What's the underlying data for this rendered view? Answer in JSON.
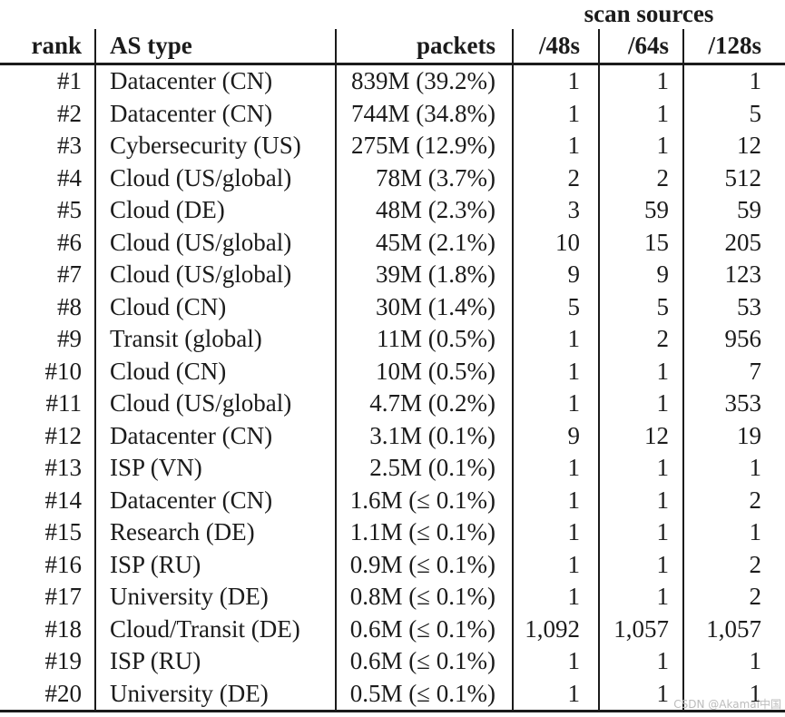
{
  "colors": {
    "text": "#1b1b1b",
    "rule": "#1b1b1b",
    "watermark": "#bcbcbc",
    "background": "#ffffff"
  },
  "table": {
    "span_header": "scan sources",
    "columns": [
      "rank",
      "AS type",
      "packets",
      "/48s",
      "/64s",
      "/128s"
    ],
    "col_keys": [
      "rank",
      "as-type",
      "packets",
      "48s",
      "64s",
      "128s"
    ],
    "rows": [
      [
        "#1",
        "Datacenter (CN)",
        "839M (39.2%)",
        "1",
        "1",
        "1"
      ],
      [
        "#2",
        "Datacenter (CN)",
        "744M (34.8%)",
        "1",
        "1",
        "5"
      ],
      [
        "#3",
        "Cybersecurity (US)",
        "275M (12.9%)",
        "1",
        "1",
        "12"
      ],
      [
        "#4",
        "Cloud (US/global)",
        "78M (3.7%)",
        "2",
        "2",
        "512"
      ],
      [
        "#5",
        "Cloud (DE)",
        "48M (2.3%)",
        "3",
        "59",
        "59"
      ],
      [
        "#6",
        "Cloud (US/global)",
        "45M (2.1%)",
        "10",
        "15",
        "205"
      ],
      [
        "#7",
        "Cloud (US/global)",
        "39M (1.8%)",
        "9",
        "9",
        "123"
      ],
      [
        "#8",
        "Cloud (CN)",
        "30M (1.4%)",
        "5",
        "5",
        "53"
      ],
      [
        "#9",
        "Transit (global)",
        "11M (0.5%)",
        "1",
        "2",
        "956"
      ],
      [
        "#10",
        "Cloud (CN)",
        "10M (0.5%)",
        "1",
        "1",
        "7"
      ],
      [
        "#11",
        "Cloud (US/global)",
        "4.7M (0.2%)",
        "1",
        "1",
        "353"
      ],
      [
        "#12",
        "Datacenter (CN)",
        "3.1M (0.1%)",
        "9",
        "12",
        "19"
      ],
      [
        "#13",
        "ISP (VN)",
        "2.5M (0.1%)",
        "1",
        "1",
        "1"
      ],
      [
        "#14",
        "Datacenter (CN)",
        "1.6M (≤ 0.1%)",
        "1",
        "1",
        "2"
      ],
      [
        "#15",
        "Research (DE)",
        "1.1M (≤ 0.1%)",
        "1",
        "1",
        "1"
      ],
      [
        "#16",
        "ISP (RU)",
        "0.9M (≤ 0.1%)",
        "1",
        "1",
        "2"
      ],
      [
        "#17",
        "University (DE)",
        "0.8M (≤ 0.1%)",
        "1",
        "1",
        "2"
      ],
      [
        "#18",
        "Cloud/Transit (DE)",
        "0.6M (≤ 0.1%)",
        "1,092",
        "1,057",
        "1,057"
      ],
      [
        "#19",
        "ISP (RU)",
        "0.6M (≤ 0.1%)",
        "1",
        "1",
        "1"
      ],
      [
        "#20",
        "University (DE)",
        "0.5M (≤ 0.1%)",
        "1",
        "1",
        "1"
      ]
    ]
  },
  "watermark": "CSDN @Akamai中国"
}
